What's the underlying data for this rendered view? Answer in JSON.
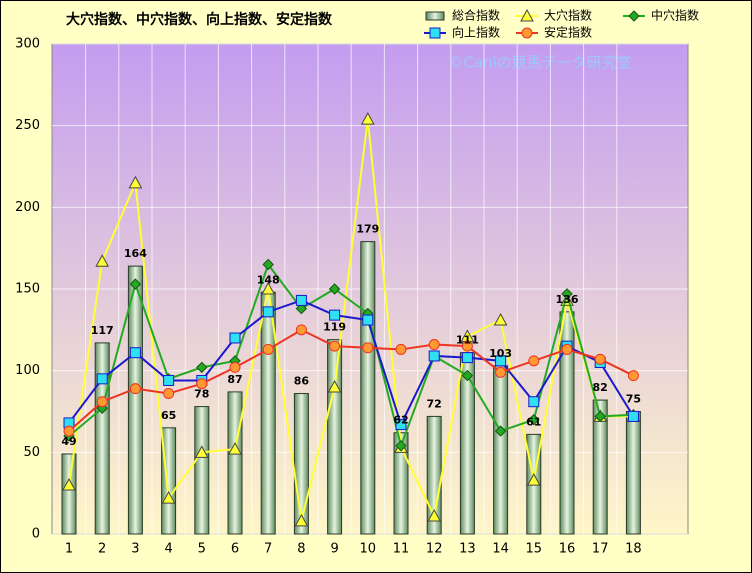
{
  "chart_data": {
    "type": "combo",
    "title": "大穴指数、中穴指数、向上指数、安定指数",
    "watermark": "©Caniの競馬データ研究室",
    "categories": [
      "1",
      "2",
      "3",
      "4",
      "5",
      "6",
      "7",
      "8",
      "9",
      "10",
      "11",
      "12",
      "13",
      "14",
      "15",
      "16",
      "17",
      "18"
    ],
    "ylim": [
      0,
      300
    ],
    "yticks": [
      0,
      50,
      100,
      150,
      200,
      250,
      300
    ],
    "grid": true,
    "legend": "top-right",
    "series": [
      {
        "name": "総合指数",
        "type": "bar",
        "color": "#9cc09c",
        "values": [
          49,
          117,
          164,
          65,
          78,
          87,
          148,
          86,
          119,
          179,
          62,
          72,
          111,
          103,
          61,
          136,
          82,
          75
        ]
      },
      {
        "name": "大穴指数",
        "type": "line",
        "marker": "triangle",
        "color": "#ffff33",
        "values": [
          30,
          167,
          215,
          22,
          50,
          52,
          150,
          8,
          90,
          254,
          53,
          11,
          121,
          131,
          33,
          143,
          72,
          72
        ]
      },
      {
        "name": "中穴指数",
        "type": "line",
        "marker": "diamond",
        "color": "#22aa22",
        "values": [
          60,
          77,
          153,
          95,
          102,
          106,
          165,
          138,
          150,
          135,
          54,
          109,
          97,
          63,
          70,
          147,
          72,
          73
        ]
      },
      {
        "name": "向上指数",
        "type": "line",
        "marker": "square",
        "color": "#1a1acc",
        "values": [
          68,
          95,
          111,
          94,
          94,
          120,
          136,
          143,
          134,
          131,
          67,
          109,
          108,
          106,
          81,
          115,
          105,
          72
        ]
      },
      {
        "name": "安定指数",
        "type": "line",
        "marker": "circle",
        "color": "#ee3322",
        "values": [
          63,
          81,
          89,
          86,
          92,
          102,
          113,
          125,
          115,
          114,
          113,
          116,
          115,
          99,
          106,
          113,
          107,
          97
        ]
      }
    ]
  }
}
